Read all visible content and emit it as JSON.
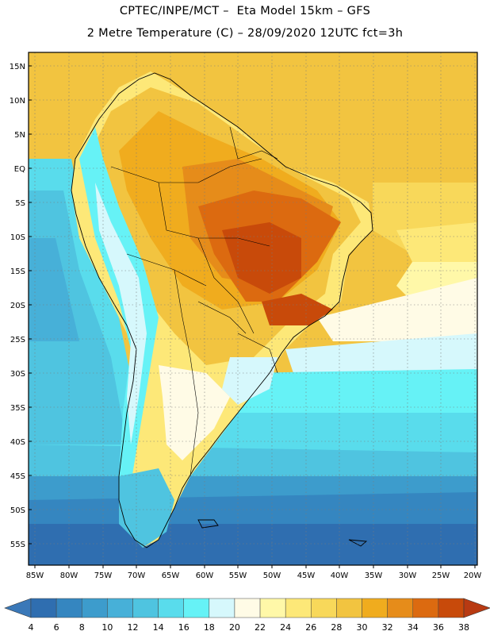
{
  "title": {
    "line1": "CPTEC/INPE/MCT –  Eta Model 15km – GFS",
    "line2": "2 Metre Temperature (C) – 28/09/2020 12UTC fct=3h"
  },
  "map": {
    "lat_labels": [
      "15N",
      "10N",
      "5N",
      "EQ",
      "5S",
      "10S",
      "15S",
      "20S",
      "25S",
      "30S",
      "35S",
      "40S",
      "45S",
      "50S",
      "55S"
    ],
    "lon_labels": [
      "85W",
      "80W",
      "75W",
      "70W",
      "65W",
      "60W",
      "55W",
      "50W",
      "45W",
      "40W",
      "35W",
      "30W",
      "25W",
      "20W"
    ]
  },
  "colorbar": {
    "labels": [
      "4",
      "6",
      "8",
      "10",
      "12",
      "14",
      "16",
      "18",
      "20",
      "22",
      "24",
      "26",
      "28",
      "30",
      "32",
      "34",
      "36",
      "38"
    ],
    "colors": {
      "below": "#3a78b8",
      "above": "#b83a12",
      "bins": [
        "#2f6eb0",
        "#3586c0",
        "#3d9ccc",
        "#47b0d8",
        "#4fc4e0",
        "#59dcec",
        "#66f2f6",
        "#d6f8fc",
        "#fffbe6",
        "#fff8a8",
        "#fde878",
        "#f8d85a",
        "#f2c440",
        "#f0ac1e",
        "#e68c1a",
        "#dc6a10",
        "#c84a0a"
      ]
    }
  }
}
